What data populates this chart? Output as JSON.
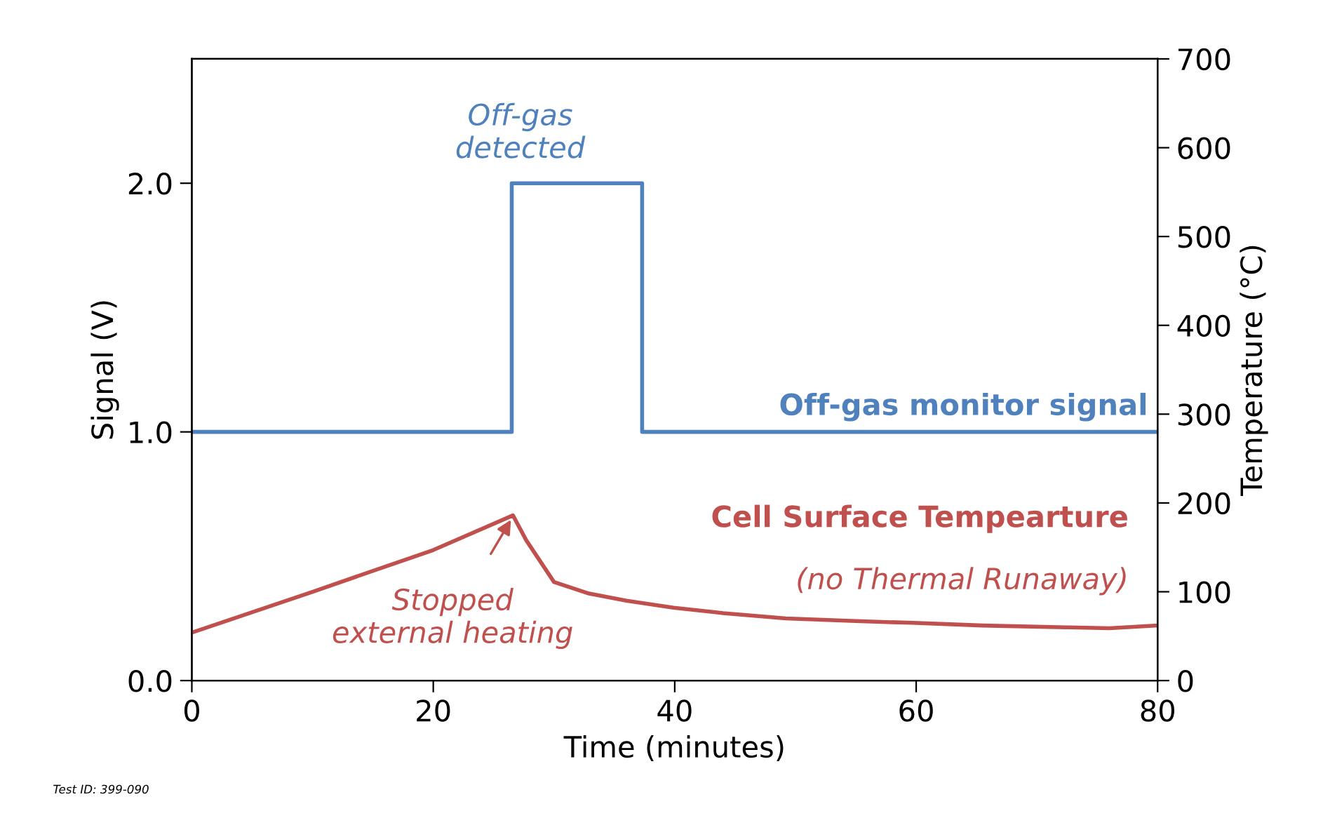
{
  "chart_data": {
    "type": "step",
    "xlabel": "Time (minutes)",
    "ylabel": "Signal (V)",
    "y2label": "Temperature (°C)",
    "xlim": [
      0,
      80
    ],
    "xticks": [
      0,
      20,
      40,
      60,
      80
    ],
    "ylim": [
      0,
      2.5
    ],
    "yticks": [
      {
        "value": 0,
        "label": "0.0"
      },
      {
        "value": 1,
        "label": "1.0"
      },
      {
        "value": 2,
        "label": "2.0"
      }
    ],
    "y2lim": [
      0,
      700
    ],
    "y2ticks": [
      0,
      100,
      200,
      300,
      400,
      500,
      600,
      700
    ],
    "grid": false,
    "series": [
      {
        "name": "Off-gas monitor signal",
        "color": "#4f81bd",
        "x": [
          0,
          26.5,
          37.3,
          80
        ],
        "values": [
          1.0,
          2.0,
          1.0,
          1.0
        ]
      },
      {
        "name": "Cell Surface Tempearture",
        "type": "line",
        "axis": "y2",
        "color": "#c0504d",
        "x": [
          0,
          10,
          20,
          26.6,
          27.7,
          30,
          32.9,
          36,
          39.9,
          44,
          49.2,
          55,
          59.7,
          65.5,
          72.4,
          76,
          80
        ],
        "values": [
          54,
          100,
          147,
          186,
          158,
          111,
          98,
          90,
          82,
          76,
          70,
          67,
          65,
          62,
          60,
          59,
          62
        ]
      }
    ],
    "annotations": [
      "Off-gas\ndetected",
      "(no Thermal Runaway)",
      {
        "text": "Stopped\nexternal heating",
        "x": 26.6,
        "y": 0.66
      },
      "Test ID: 399-090"
    ]
  }
}
